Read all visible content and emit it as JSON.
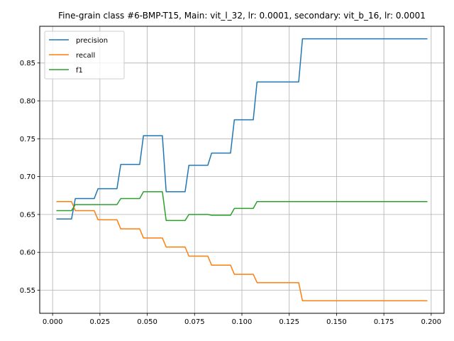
{
  "chart_data": {
    "type": "line",
    "title": "Fine-grain class #6-BMP-T15, Main: vit_l_32, lr: 0.0001, secondary: vit_b_16, lr: 0.0001",
    "xlabel": "",
    "ylabel": "",
    "xlim": [
      -0.0068,
      0.2068
    ],
    "ylim": [
      0.5195,
      0.8985
    ],
    "xticks": [
      0.0,
      0.025,
      0.05,
      0.075,
      0.1,
      0.125,
      0.15,
      0.175,
      0.2
    ],
    "xtick_labels": [
      "0.000",
      "0.025",
      "0.050",
      "0.075",
      "0.100",
      "0.125",
      "0.150",
      "0.175",
      "0.200"
    ],
    "yticks": [
      0.55,
      0.6,
      0.65,
      0.7,
      0.75,
      0.8,
      0.85
    ],
    "ytick_labels": [
      "0.55",
      "0.60",
      "0.65",
      "0.70",
      "0.75",
      "0.80",
      "0.85"
    ],
    "grid": true,
    "legend_position": "top-left",
    "series": [
      {
        "name": "precision",
        "color": "#1f77b4",
        "points": [
          [
            0.002,
            0.644
          ],
          [
            0.01,
            0.644
          ],
          [
            0.012,
            0.671
          ],
          [
            0.022,
            0.671
          ],
          [
            0.024,
            0.684
          ],
          [
            0.034,
            0.684
          ],
          [
            0.036,
            0.716
          ],
          [
            0.046,
            0.716
          ],
          [
            0.048,
            0.754
          ],
          [
            0.058,
            0.754
          ],
          [
            0.06,
            0.68
          ],
          [
            0.07,
            0.68
          ],
          [
            0.072,
            0.715
          ],
          [
            0.082,
            0.715
          ],
          [
            0.084,
            0.731
          ],
          [
            0.094,
            0.731
          ],
          [
            0.096,
            0.775
          ],
          [
            0.106,
            0.775
          ],
          [
            0.108,
            0.825
          ],
          [
            0.13,
            0.825
          ],
          [
            0.132,
            0.882
          ],
          [
            0.198,
            0.882
          ]
        ]
      },
      {
        "name": "recall",
        "color": "#ff7f0e",
        "points": [
          [
            0.002,
            0.667
          ],
          [
            0.01,
            0.667
          ],
          [
            0.012,
            0.655
          ],
          [
            0.022,
            0.655
          ],
          [
            0.024,
            0.643
          ],
          [
            0.034,
            0.643
          ],
          [
            0.036,
            0.631
          ],
          [
            0.046,
            0.631
          ],
          [
            0.048,
            0.619
          ],
          [
            0.058,
            0.619
          ],
          [
            0.06,
            0.607
          ],
          [
            0.07,
            0.607
          ],
          [
            0.072,
            0.595
          ],
          [
            0.082,
            0.595
          ],
          [
            0.084,
            0.583
          ],
          [
            0.094,
            0.583
          ],
          [
            0.096,
            0.571
          ],
          [
            0.106,
            0.571
          ],
          [
            0.108,
            0.56
          ],
          [
            0.13,
            0.56
          ],
          [
            0.132,
            0.536
          ],
          [
            0.198,
            0.536
          ]
        ]
      },
      {
        "name": "f1",
        "color": "#2ca02c",
        "points": [
          [
            0.002,
            0.655
          ],
          [
            0.01,
            0.655
          ],
          [
            0.012,
            0.663
          ],
          [
            0.022,
            0.663
          ],
          [
            0.034,
            0.663
          ],
          [
            0.036,
            0.671
          ],
          [
            0.046,
            0.671
          ],
          [
            0.048,
            0.68
          ],
          [
            0.058,
            0.68
          ],
          [
            0.06,
            0.642
          ],
          [
            0.07,
            0.642
          ],
          [
            0.072,
            0.65
          ],
          [
            0.082,
            0.65
          ],
          [
            0.084,
            0.649
          ],
          [
            0.094,
            0.649
          ],
          [
            0.096,
            0.658
          ],
          [
            0.106,
            0.658
          ],
          [
            0.108,
            0.667
          ],
          [
            0.198,
            0.667
          ]
        ]
      }
    ]
  }
}
